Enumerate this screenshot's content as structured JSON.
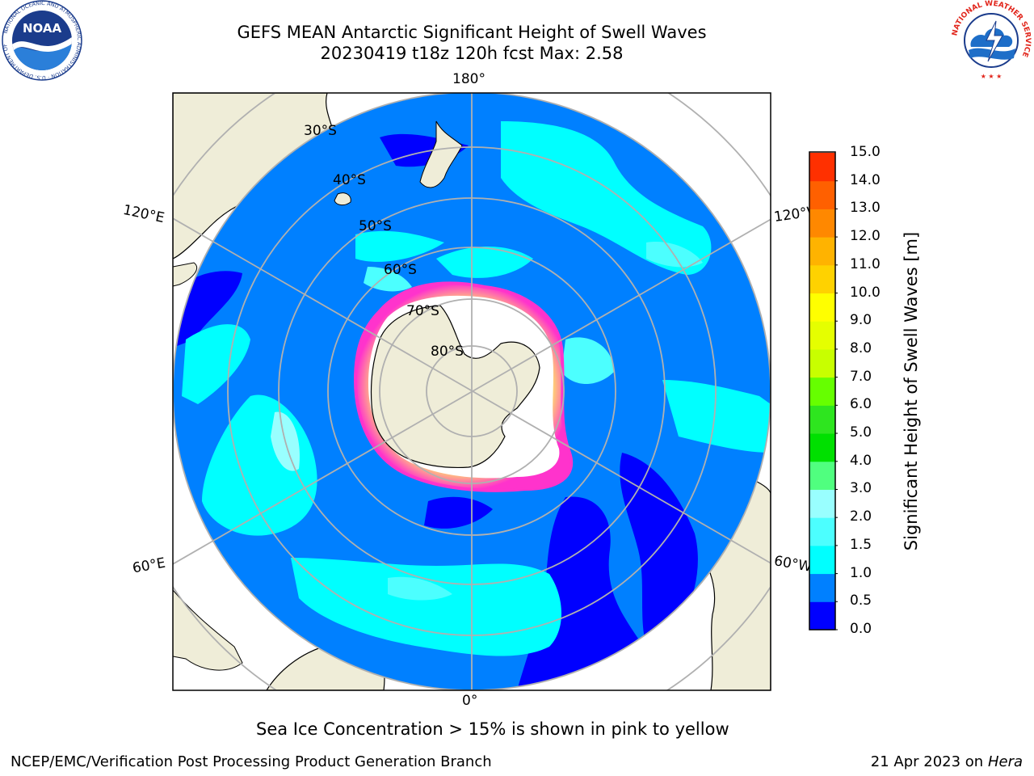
{
  "header": {
    "title_line1": "GEFS MEAN Antarctic Significant Height of Swell Waves",
    "title_line2": "20230419 t18z 120h fcst   Max: 2.58"
  },
  "map": {
    "longitude_labels": {
      "top": "180°",
      "bottom": "0°",
      "upper_left": "120°E",
      "upper_right": "120°W",
      "lower_left": "60°E",
      "lower_right": "60°W"
    },
    "latitude_labels": [
      "30°S",
      "40°S",
      "50°S",
      "60°S",
      "70°S",
      "80°S"
    ],
    "colors": {
      "land": "#efedd8",
      "ice_shelf": "#ffffff",
      "sea_ice_pink": "#ff33cc",
      "sea_ice_yellow": "#ffee66",
      "grid": "#b0b0b0"
    }
  },
  "colorbar": {
    "title": "Significant Height of Swell Waves [m]",
    "tick_labels": [
      "0.0",
      "0.5",
      "1.0",
      "1.5",
      "2.0",
      "3.0",
      "4.0",
      "5.0",
      "6.0",
      "7.0",
      "8.0",
      "9.0",
      "10.0",
      "11.0",
      "12.0",
      "13.0",
      "14.0",
      "15.0"
    ],
    "colors": [
      "#0000ff",
      "#0080ff",
      "#00ffff",
      "#4cffff",
      "#99ffff",
      "#50ff7f",
      "#00e000",
      "#2ee51f",
      "#66ff00",
      "#c8ff00",
      "#e5ff00",
      "#ffff00",
      "#ffd200",
      "#ffb300",
      "#ff8800",
      "#ff6000",
      "#ff3000",
      "#ff0000"
    ]
  },
  "footer": {
    "note": "Sea Ice Concentration > 15% is shown in pink to yellow",
    "left": "NCEP/EMC/Verification Post Processing Product Generation Branch",
    "date": "21 Apr 2023 on ",
    "host": "Hera"
  },
  "logos": {
    "noaa_text": "NOAA",
    "noaa_ring_text": "NATIONAL OCEANIC AND ATMOSPHERIC ADMINISTRATION · U.S. DEPARTMENT OF COMMERCE",
    "nws_ring_text": "NATIONAL WEATHER SERVICE"
  }
}
